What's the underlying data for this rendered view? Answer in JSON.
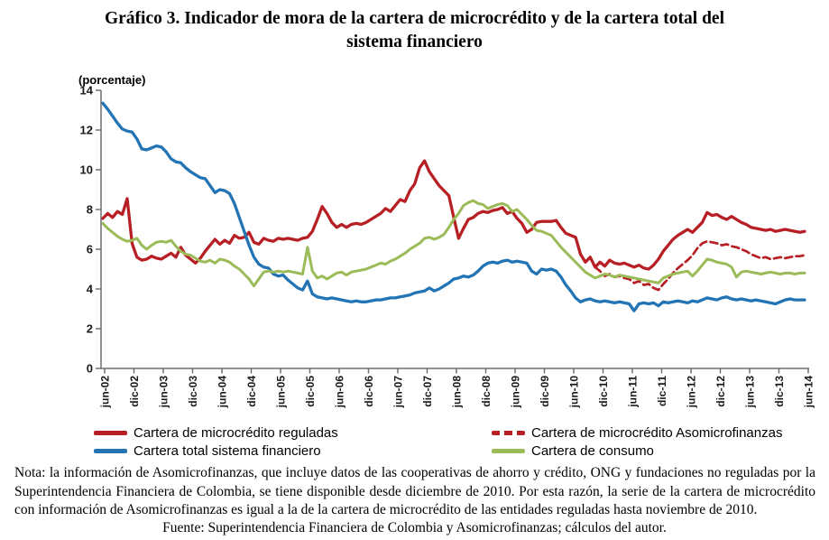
{
  "header": {
    "title_line1": "Gráfico 3. Indicador de mora de la cartera de microcrédito y de la cartera total del",
    "title_line2": "sistema financiero",
    "unit_label": "(porcentaje)"
  },
  "chart_data": {
    "type": "line",
    "title": "Gráfico 3. Indicador de mora de la cartera de microcrédito y de la cartera total del sistema financiero",
    "ylabel": "porcentaje",
    "ylim": [
      0,
      14
    ],
    "y_ticks": [
      0,
      2,
      4,
      6,
      8,
      10,
      12,
      14
    ],
    "grid": false,
    "legend_position": "bottom",
    "x_start": "jun-02",
    "x_end": "jun-14",
    "frequency_months": 1,
    "x_tick_labels": [
      "jun-02",
      "dic-02",
      "jun-03",
      "dic-03",
      "jun-04",
      "dic-04",
      "jun-05",
      "dic-05",
      "jun-06",
      "dic-06",
      "jun-07",
      "dic-07",
      "jun-08",
      "dic-08",
      "jun-09",
      "dic-09",
      "jun-10",
      "dic-10",
      "jun-11",
      "dic-11",
      "jun-12",
      "dic-12",
      "jun-13",
      "dic-13",
      "jun-14"
    ],
    "series": [
      {
        "name": "Cartera de microcrédito reguladas",
        "color": "#B71F24",
        "style": "solid",
        "width": 3.3,
        "start_index": 0,
        "values": [
          7.55,
          7.8,
          7.6,
          7.9,
          7.75,
          8.55,
          6.3,
          5.6,
          5.45,
          5.5,
          5.65,
          5.55,
          5.5,
          5.65,
          5.8,
          5.6,
          6.1,
          5.7,
          5.5,
          5.3,
          5.55,
          5.9,
          6.2,
          6.5,
          6.25,
          6.45,
          6.3,
          6.7,
          6.55,
          6.6,
          6.85,
          6.35,
          6.25,
          6.55,
          6.45,
          6.4,
          6.55,
          6.5,
          6.55,
          6.5,
          6.45,
          6.55,
          6.6,
          6.9,
          7.5,
          8.15,
          7.8,
          7.35,
          7.1,
          7.25,
          7.1,
          7.25,
          7.3,
          7.25,
          7.35,
          7.5,
          7.65,
          7.8,
          8.05,
          7.9,
          8.2,
          8.5,
          8.4,
          8.95,
          9.3,
          10.1,
          10.45,
          9.9,
          9.55,
          9.2,
          8.95,
          8.7,
          7.6,
          6.55,
          7.05,
          7.5,
          7.6,
          7.8,
          7.9,
          7.85,
          7.95,
          8.0,
          8.1,
          7.8,
          7.9,
          7.55,
          7.3,
          6.85,
          7.0,
          7.35,
          7.4,
          7.4,
          7.4,
          7.45,
          7.1,
          6.8,
          6.7,
          6.6,
          5.75,
          5.35,
          5.6,
          5.1,
          5.35,
          5.15,
          5.45,
          5.3,
          5.25,
          5.3,
          5.2,
          5.1,
          5.2,
          5.05,
          5.0,
          5.2,
          5.5,
          5.9,
          6.2,
          6.5,
          6.7,
          6.85,
          7.0,
          6.85,
          7.1,
          7.35,
          7.85,
          7.7,
          7.75,
          7.6,
          7.5,
          7.65,
          7.5,
          7.35,
          7.25,
          7.1,
          7.05,
          7.0,
          6.95,
          7.0,
          6.9,
          6.95,
          7.0,
          6.95,
          6.9,
          6.85,
          6.9
        ]
      },
      {
        "name": "Cartera de microcrédito Asomicrofinanzas",
        "color": "#B71F24",
        "style": "dashed",
        "width": 2.7,
        "start_index": 101,
        "values": [
          5.1,
          4.9,
          4.65,
          4.75,
          4.6,
          4.65,
          4.55,
          4.5,
          4.3,
          4.4,
          4.2,
          4.25,
          4.05,
          3.95,
          4.25,
          4.5,
          4.8,
          5.05,
          5.25,
          5.45,
          5.7,
          6.05,
          6.3,
          6.4,
          6.35,
          6.3,
          6.2,
          6.25,
          6.15,
          6.1,
          6.0,
          5.9,
          5.75,
          5.65,
          5.55,
          5.6,
          5.5,
          5.55,
          5.6,
          5.55,
          5.6,
          5.65,
          5.65,
          5.7
        ]
      },
      {
        "name": "Cartera total sistema financiero",
        "color": "#2274B5",
        "style": "solid",
        "width": 3.3,
        "start_index": 0,
        "values": [
          13.35,
          13.05,
          12.7,
          12.35,
          12.05,
          11.95,
          11.9,
          11.55,
          11.05,
          11.0,
          11.1,
          11.2,
          11.15,
          10.9,
          10.55,
          10.4,
          10.35,
          10.1,
          9.9,
          9.75,
          9.6,
          9.55,
          9.2,
          8.85,
          9.0,
          8.95,
          8.8,
          8.3,
          7.6,
          6.9,
          6.2,
          5.6,
          5.25,
          5.1,
          5.05,
          4.75,
          4.65,
          4.7,
          4.45,
          4.25,
          4.05,
          3.95,
          4.4,
          3.75,
          3.6,
          3.55,
          3.5,
          3.55,
          3.5,
          3.45,
          3.4,
          3.35,
          3.4,
          3.35,
          3.35,
          3.4,
          3.45,
          3.45,
          3.5,
          3.55,
          3.55,
          3.6,
          3.65,
          3.7,
          3.8,
          3.85,
          3.9,
          4.05,
          3.9,
          4.0,
          4.15,
          4.3,
          4.5,
          4.55,
          4.65,
          4.6,
          4.7,
          4.9,
          5.15,
          5.3,
          5.35,
          5.3,
          5.4,
          5.45,
          5.35,
          5.4,
          5.35,
          5.3,
          4.9,
          4.75,
          5.0,
          4.95,
          5.0,
          4.9,
          4.6,
          4.2,
          3.9,
          3.55,
          3.35,
          3.45,
          3.5,
          3.4,
          3.35,
          3.4,
          3.35,
          3.3,
          3.35,
          3.3,
          3.25,
          2.9,
          3.25,
          3.3,
          3.25,
          3.3,
          3.15,
          3.35,
          3.3,
          3.35,
          3.4,
          3.35,
          3.3,
          3.4,
          3.35,
          3.45,
          3.55,
          3.5,
          3.45,
          3.55,
          3.6,
          3.5,
          3.45,
          3.5,
          3.45,
          3.4,
          3.45,
          3.4,
          3.35,
          3.3,
          3.25,
          3.35,
          3.45,
          3.5,
          3.45,
          3.45,
          3.45
        ]
      },
      {
        "name": "Cartera de consumo",
        "color": "#9BBB59",
        "style": "solid",
        "width": 3.0,
        "start_index": 0,
        "values": [
          7.3,
          7.05,
          6.85,
          6.65,
          6.5,
          6.4,
          6.45,
          6.55,
          6.2,
          6.0,
          6.2,
          6.35,
          6.4,
          6.35,
          6.45,
          6.15,
          5.9,
          5.75,
          5.7,
          5.55,
          5.4,
          5.35,
          5.45,
          5.3,
          5.5,
          5.45,
          5.35,
          5.15,
          5.0,
          4.75,
          4.5,
          4.15,
          4.5,
          4.85,
          4.9,
          4.85,
          4.9,
          4.85,
          4.9,
          4.85,
          4.8,
          4.75,
          6.1,
          4.9,
          4.55,
          4.65,
          4.5,
          4.65,
          4.8,
          4.85,
          4.7,
          4.85,
          4.9,
          4.95,
          5.0,
          5.1,
          5.2,
          5.3,
          5.25,
          5.4,
          5.5,
          5.65,
          5.8,
          6.0,
          6.15,
          6.3,
          6.55,
          6.6,
          6.5,
          6.6,
          6.75,
          7.1,
          7.5,
          7.8,
          8.2,
          8.35,
          8.45,
          8.3,
          8.25,
          8.05,
          8.15,
          8.25,
          8.3,
          8.2,
          7.9,
          8.0,
          7.75,
          7.5,
          7.2,
          6.95,
          6.9,
          6.8,
          6.7,
          6.4,
          6.1,
          5.85,
          5.6,
          5.35,
          5.1,
          4.85,
          4.7,
          4.55,
          4.65,
          4.75,
          4.7,
          4.6,
          4.7,
          4.65,
          4.6,
          4.55,
          4.5,
          4.45,
          4.4,
          4.35,
          4.3,
          4.55,
          4.65,
          4.75,
          4.8,
          4.85,
          4.9,
          4.65,
          4.9,
          5.2,
          5.5,
          5.45,
          5.35,
          5.3,
          5.25,
          5.1,
          4.6,
          4.85,
          4.9,
          4.85,
          4.8,
          4.75,
          4.8,
          4.85,
          4.8,
          4.75,
          4.8,
          4.8,
          4.75,
          4.8,
          4.8
        ]
      }
    ]
  },
  "footer": {
    "note": "Nota: la información de Asomicrofinanzas, que incluye datos de las cooperativas de ahorro y crédito, ONG y fundaciones no reguladas por la Superintendencia Financiera de Colombia, se tiene disponible desde diciembre de 2010. Por esta razón, la serie de la cartera de microcrédito con información de Asomicrofinanzas es igual a la de la cartera de microcrédito de las entidades reguladas hasta noviembre de 2010.",
    "source": "Fuente: Superintendencia Financiera de Colombia y Asomicrofinanzas; cálculos del autor."
  },
  "style": {
    "axis_color": "#6E6E6E",
    "tick_label_color": "#1A1A1A"
  }
}
